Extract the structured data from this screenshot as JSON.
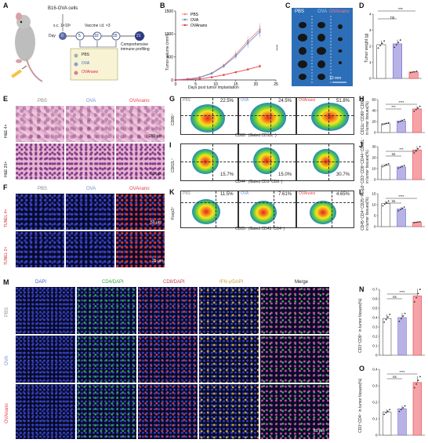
{
  "panels": {
    "A": {
      "label": "A",
      "cells": "B16-OVA cells",
      "route_sc": "s.c. 1×10⁶",
      "day_label": "Day",
      "days": [
        "0",
        "5",
        "10",
        "15",
        "21"
      ],
      "vaccine": "Vaccine i.d. ×3",
      "profiling": "Comprehensive immune profiling",
      "groups": [
        "PBS",
        "OVA",
        "OVAnano"
      ]
    },
    "B": {
      "label": "B",
      "ylabel": "Tumor volume (mm³)",
      "xlabel": "Days post tumor implantation",
      "sig": "****"
    },
    "C": {
      "label": "C",
      "groups": [
        "PBS",
        "OVA",
        "OVAnano"
      ],
      "scale": "10 mm"
    },
    "D": {
      "label": "D",
      "ylabel": "Tumor weight (g)",
      "sig_top": "***",
      "sig_ns": "ns"
    },
    "E": {
      "label": "E",
      "groups": [
        "PBS",
        "OVA",
        "OVAnano"
      ],
      "row1": "H&E 4×",
      "row2": "H&E 20×",
      "scale1": "250 μm",
      "scale2": "50 μm"
    },
    "F": {
      "label": "F",
      "groups": [
        "PBS",
        "OVA",
        "OVAnano"
      ],
      "row1": "TUNEL 4×",
      "row2": "TUNEL 2×",
      "scale1": "50 μm",
      "scale2": "25 μm"
    },
    "G": {
      "label": "G",
      "ylabel": "CD86⁺",
      "xlabel": "CD80⁺ (Gated CD11c⁺)",
      "groups": [
        "PBS",
        "OVA",
        "OVAnano"
      ],
      "pcts": [
        "22.5%",
        "24.5%",
        "51.8%"
      ]
    },
    "H": {
      "label": "H",
      "ylabel": "CD11c⁺CD80⁺CD86⁺ in tumor tissues(%)",
      "sigs": [
        "****",
        "***",
        "*"
      ]
    },
    "I": {
      "label": "I",
      "ylabel": "CD62L⁺",
      "xlabel": "CD44⁺ (Gated CD3⁺CD8⁺)",
      "pcts": [
        "15.7%",
        "15.0%",
        "30.7%"
      ]
    },
    "J": {
      "label": "J",
      "ylabel": "CD3⁺CD8⁺CD44⁺CD62L⁻ in tumor tissues(%)",
      "sigs": [
        "***",
        "ns"
      ]
    },
    "K": {
      "label": "K",
      "ylabel": "Foxp3⁺",
      "xlabel": "CD25⁺ (Gated CD45⁺CD4⁺)",
      "groups": [
        "PBS",
        "OVA",
        "OVAnano"
      ],
      "pcts": [
        "11.5%",
        "7.61%",
        "4.65%"
      ]
    },
    "L": {
      "label": "L",
      "ylabel": "CD45⁺CD4⁺CD25⁺Foxp3⁺ in tumor tissues(%)",
      "sigs": [
        "****",
        "ns"
      ]
    },
    "M": {
      "label": "M",
      "cols": [
        "DAPI",
        "CD4/DAPI",
        "CD8/DAPI",
        "IFN-γ/DAPI",
        "Merge"
      ],
      "rows": [
        "PBS",
        "OVA",
        "OVAnano"
      ],
      "scale": "50 μm"
    },
    "N": {
      "label": "N",
      "ylabel": "CD3⁺CD8⁺ in tumor tissues(%)",
      "sigs": [
        "****",
        "ns"
      ]
    },
    "O": {
      "label": "O",
      "ylabel": "CD3⁺CD4⁺ in tumor tissues(%)",
      "sigs": [
        "****",
        "ns"
      ]
    }
  },
  "colors": {
    "pbs": "#f08a7a",
    "ova": "#6f8fd6",
    "ovanano": "#e8414a",
    "bar_pbs": "#ffffff",
    "bar_ova": "#b7b3e6",
    "bar_nano": "#f6a3a8"
  },
  "chart_data": [
    {
      "id": "B",
      "type": "line",
      "x": [
        0,
        3,
        6,
        9,
        12,
        15,
        18,
        21
      ],
      "series": [
        {
          "name": "PBS",
          "values": [
            0,
            20,
            60,
            150,
            320,
            560,
            850,
            1100
          ]
        },
        {
          "name": "OVA",
          "values": [
            0,
            20,
            55,
            140,
            300,
            520,
            800,
            1050
          ]
        },
        {
          "name": "OVAnano",
          "values": [
            0,
            10,
            25,
            60,
            110,
            170,
            230,
            300
          ]
        }
      ],
      "ylim": [
        0,
        1500
      ],
      "xlim": [
        0,
        25
      ],
      "yticks": [
        0,
        500,
        1000,
        1500
      ],
      "xticks": [
        0,
        5,
        10,
        15,
        20,
        25
      ]
    },
    {
      "id": "D",
      "type": "bar",
      "categories": [
        "PBS",
        "OVA",
        "OVAnano"
      ],
      "values": [
        2.1,
        2.15,
        0.4
      ],
      "ylim": [
        0,
        4
      ],
      "yticks": [
        0,
        1,
        2,
        3,
        4
      ]
    },
    {
      "id": "H",
      "type": "bar",
      "categories": [
        "PBS",
        "OVA",
        "OVAnano"
      ],
      "values": [
        16,
        21,
        43
      ],
      "ylim": [
        0,
        60
      ],
      "yticks": [
        0,
        20,
        40,
        60
      ]
    },
    {
      "id": "J",
      "type": "bar",
      "categories": [
        "PBS",
        "OVA",
        "OVAnano"
      ],
      "values": [
        13,
        11.5,
        27
      ],
      "ylim": [
        0,
        30
      ],
      "yticks": [
        0,
        10,
        20,
        30
      ]
    },
    {
      "id": "L",
      "type": "bar",
      "categories": [
        "PBS",
        "OVA",
        "OVAnano"
      ],
      "values": [
        10.5,
        8,
        2
      ],
      "ylim": [
        0,
        15
      ],
      "yticks": [
        0,
        5,
        10,
        15
      ]
    },
    {
      "id": "N",
      "type": "bar",
      "categories": [
        "PBS",
        "OVA",
        "OVAnano"
      ],
      "values": [
        0.39,
        0.4,
        0.63
      ],
      "ylim": [
        0.0,
        0.7
      ],
      "yticks": [
        0.0,
        0.1,
        0.2,
        0.3,
        0.4,
        0.5,
        0.6,
        0.7
      ]
    },
    {
      "id": "O",
      "type": "bar",
      "categories": [
        "PBS",
        "OVA",
        "OVAnano"
      ],
      "values": [
        0.14,
        0.16,
        0.32
      ],
      "ylim": [
        0.0,
        0.4
      ],
      "yticks": [
        0.0,
        0.1,
        0.2,
        0.3,
        0.4
      ]
    }
  ]
}
